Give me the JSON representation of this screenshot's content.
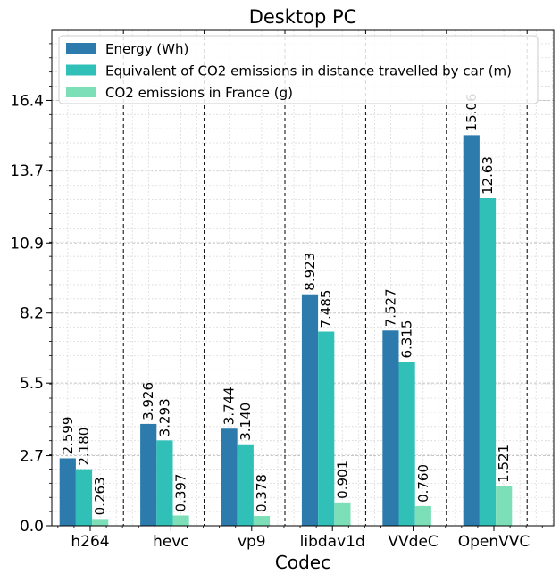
{
  "chart_data": {
    "type": "bar",
    "title": "Desktop PC",
    "xlabel": "Codec",
    "ylabel": "",
    "ylim": [
      0,
      19.1
    ],
    "yticks": [
      "0.0",
      "2.7",
      "5.5",
      "8.2",
      "10.9",
      "13.7",
      "16.4"
    ],
    "grid": true,
    "legend_position": "top-left",
    "categories": [
      "h264",
      "hevc",
      "vp9",
      "libdav1d",
      "VVdeC",
      "OpenVVC"
    ],
    "series": [
      {
        "name": "Energy (Wh)",
        "color": "#2c7bac",
        "values": [
          2.599,
          3.926,
          3.744,
          8.923,
          7.527,
          15.06
        ],
        "labels": [
          "2.599",
          "3.926",
          "3.744",
          "8.923",
          "7.527",
          "15.06"
        ]
      },
      {
        "name": "Equivalent of CO2 emissions in distance travelled by car (m)",
        "color": "#31c0b8",
        "values": [
          2.18,
          3.293,
          3.14,
          7.485,
          6.315,
          12.63
        ],
        "labels": [
          "2.180",
          "3.293",
          "3.140",
          "7.485",
          "6.315",
          "12.63"
        ]
      },
      {
        "name": "CO2 emissions in France (g)",
        "color": "#7ddfb8",
        "values": [
          0.263,
          0.397,
          0.378,
          0.901,
          0.76,
          1.521
        ],
        "labels": [
          "0.263",
          "0.397",
          "0.378",
          "0.901",
          "0.760",
          "1.521"
        ]
      }
    ]
  }
}
